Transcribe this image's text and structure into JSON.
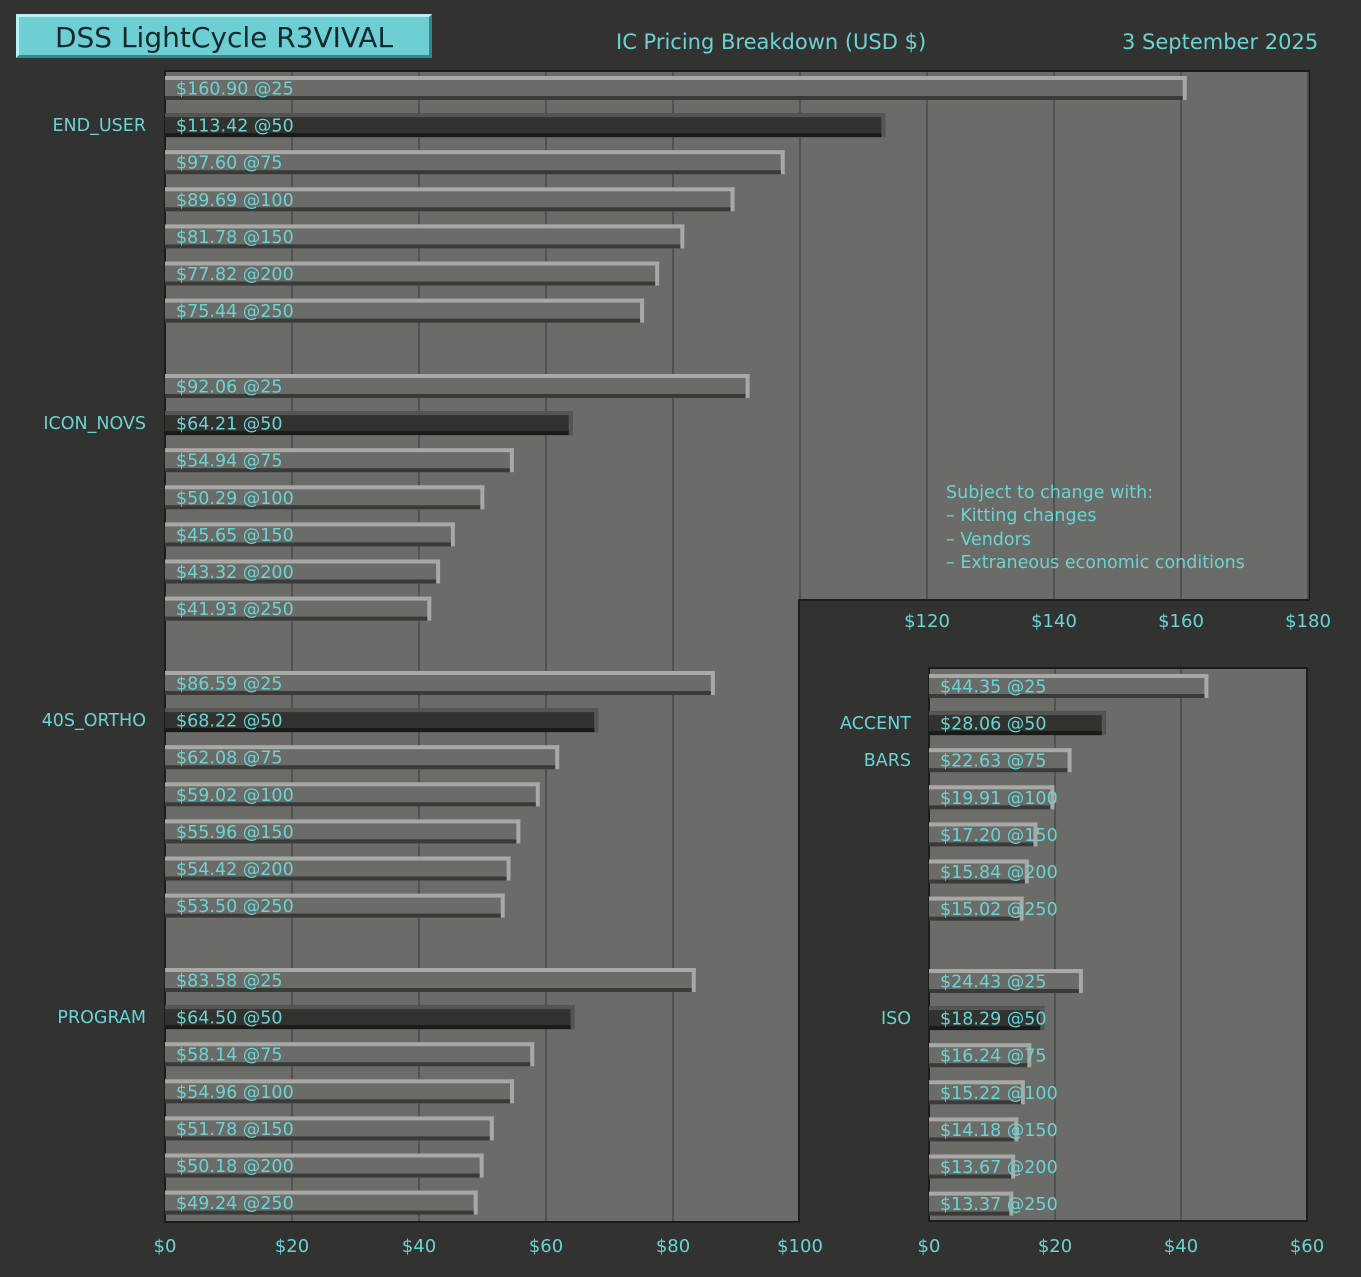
{
  "header": {
    "app_title": "DSS LightCycle R3VIVAL",
    "chart_title": "IC Pricing Breakdown (USD $)",
    "date": "3 September 2025"
  },
  "note": {
    "heading": "Subject to change with:",
    "items": [
      "– Kitting changes",
      "– Vendors",
      "– Extraneous economic conditions"
    ]
  },
  "colors": {
    "background": "#323230",
    "plot_area": "#6b6b67",
    "bar_light": "#6b6b67",
    "bar_dark": "#32322f",
    "text": "#6ad3d6",
    "title_box": "#6dcfd3"
  },
  "chart_data": [
    {
      "type": "bar",
      "orientation": "horizontal",
      "label_format": "$value @quantity",
      "xlim": [
        0,
        180
      ],
      "x_tick_labels": [
        "$0",
        "$20",
        "$40",
        "$60",
        "$80",
        "$100",
        "$120",
        "$140",
        "$160",
        "$180"
      ],
      "grid": true,
      "quantities": [
        25,
        50,
        75,
        100,
        150,
        200,
        250
      ],
      "groups": [
        {
          "name": "END_USER",
          "values": [
            160.9,
            113.42,
            97.6,
            89.69,
            81.78,
            77.82,
            75.44
          ],
          "labels": [
            "$160.90 @25",
            "$113.42 @50",
            "$97.60 @75",
            "$89.69 @100",
            "$81.78 @150",
            "$77.82 @200",
            "$75.44 @250"
          ]
        },
        {
          "name": "ICON_NOVS",
          "values": [
            92.06,
            64.21,
            54.94,
            50.29,
            45.65,
            43.32,
            41.93
          ],
          "labels": [
            "$92.06 @25",
            "$64.21 @50",
            "$54.94 @75",
            "$50.29 @100",
            "$45.65 @150",
            "$43.32 @200",
            "$41.93 @250"
          ]
        },
        {
          "name": "40S_ORTHO",
          "values": [
            86.59,
            68.22,
            62.08,
            59.02,
            55.96,
            54.42,
            53.5
          ],
          "labels": [
            "$86.59 @25",
            "$68.22 @50",
            "$62.08 @75",
            "$59.02 @100",
            "$55.96 @150",
            "$54.42 @200",
            "$53.50 @250"
          ]
        },
        {
          "name": "PROGRAM",
          "values": [
            83.58,
            64.5,
            58.14,
            54.96,
            51.78,
            50.18,
            49.24
          ],
          "labels": [
            "$83.58 @25",
            "$64.50 @50",
            "$58.14 @75",
            "$54.96 @100",
            "$51.78 @150",
            "$50.18 @200",
            "$49.24 @250"
          ]
        }
      ]
    },
    {
      "type": "bar",
      "orientation": "horizontal",
      "label_format": "$value @quantity",
      "xlim": [
        0,
        60
      ],
      "x_tick_labels": [
        "$0",
        "$20",
        "$40",
        "$60"
      ],
      "grid": true,
      "quantities": [
        25,
        50,
        75,
        100,
        150,
        200,
        250
      ],
      "groups": [
        {
          "name": "ACCENT BARS",
          "name_lines": [
            "ACCENT",
            "BARS"
          ],
          "values": [
            44.35,
            28.06,
            22.63,
            19.91,
            17.2,
            15.84,
            15.02
          ],
          "labels": [
            "$44.35 @25",
            "$28.06 @50",
            "$22.63 @75",
            "$19.91 @100",
            "$17.20 @150",
            "$15.84 @200",
            "$15.02 @250"
          ]
        },
        {
          "name": "ISO",
          "name_lines": [
            "ISO"
          ],
          "values": [
            24.43,
            18.29,
            16.24,
            15.22,
            14.18,
            13.67,
            13.37
          ],
          "labels": [
            "$24.43 @25",
            "$18.29 @50",
            "$16.24 @75",
            "$15.22 @100",
            "$14.18 @150",
            "$13.67 @200",
            "$13.37 @250"
          ]
        }
      ]
    }
  ]
}
